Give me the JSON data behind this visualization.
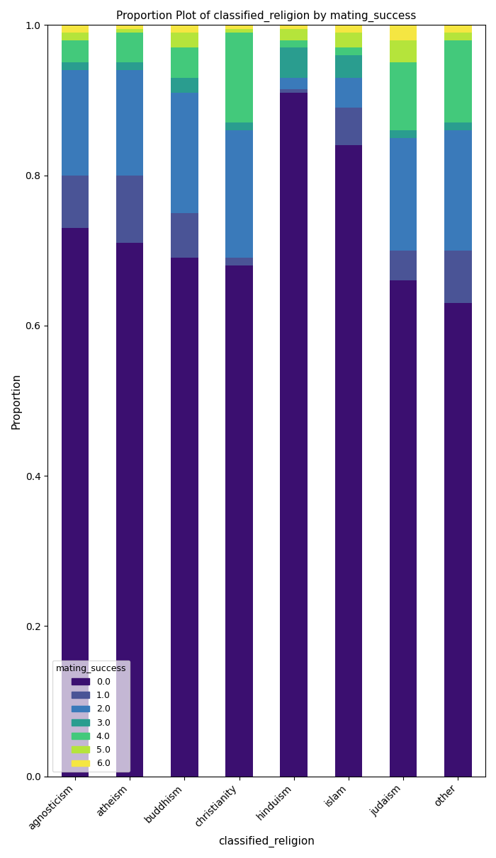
{
  "categories": [
    "agnosticism",
    "atheism",
    "buddhism",
    "christianity",
    "hinduism",
    "islam",
    "judaism",
    "other"
  ],
  "mating_success_labels": [
    "0.0",
    "1.0",
    "2.0",
    "3.0",
    "4.0",
    "5.0",
    "6.0"
  ],
  "cumulative": {
    "agnosticism": [
      0.73,
      0.8,
      0.94,
      0.95,
      0.98,
      0.99,
      1.0
    ],
    "atheism": [
      0.71,
      0.8,
      0.94,
      0.95,
      0.99,
      0.995,
      1.0
    ],
    "buddhism": [
      0.69,
      0.75,
      0.91,
      0.93,
      0.97,
      0.99,
      1.0
    ],
    "christianity": [
      0.68,
      0.69,
      0.86,
      0.87,
      0.99,
      0.995,
      1.0
    ],
    "hinduism": [
      0.91,
      0.915,
      0.93,
      0.97,
      0.98,
      0.995,
      1.0
    ],
    "islam": [
      0.84,
      0.89,
      0.93,
      0.96,
      0.97,
      0.99,
      1.0
    ],
    "judaism": [
      0.66,
      0.7,
      0.85,
      0.86,
      0.95,
      0.98,
      1.0
    ],
    "other": [
      0.63,
      0.7,
      0.86,
      0.87,
      0.98,
      0.99,
      1.0
    ]
  },
  "colors": [
    "#3b0f70",
    "#4a5496",
    "#3a7aba",
    "#2a9d8f",
    "#43c97b",
    "#b5e43b",
    "#f5e642"
  ],
  "title": "Proportion Plot of classified_religion by mating_success",
  "xlabel": "classified_religion",
  "ylabel": "Proportion",
  "legend_title": "mating_success",
  "figsize": [
    7.0,
    12.12
  ],
  "dpi": 100,
  "bar_width": 0.5
}
